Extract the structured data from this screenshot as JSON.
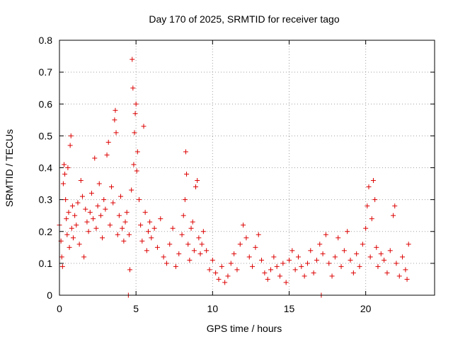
{
  "chart_data": {
    "type": "scatter",
    "title": "Day 170 of 2025, SRMTID for receiver tago",
    "xlabel": "GPS time / hours",
    "ylabel": "SRMTID / TECUs",
    "xlim": [
      0,
      24.5
    ],
    "ylim": [
      0,
      0.8
    ],
    "grid": true,
    "marker": "+",
    "x_ticks": [
      0,
      5,
      10,
      15,
      20
    ],
    "x_tick_labels": [
      "0",
      "5",
      "10",
      "15",
      "20"
    ],
    "y_ticks": [
      0,
      0.1,
      0.2,
      0.3,
      0.4,
      0.5,
      0.6,
      0.7,
      0.8
    ],
    "y_tick_labels": [
      "0",
      "0.1",
      "0.2",
      "0.3",
      "0.4",
      "0.5",
      "0.6",
      "0.7",
      "0.8"
    ],
    "color": "#dd0000",
    "series": [
      {
        "name": "SRMTID",
        "points": [
          [
            0.0,
            0.22
          ],
          [
            0.1,
            0.17
          ],
          [
            0.15,
            0.12
          ],
          [
            0.2,
            0.09
          ],
          [
            0.25,
            0.35
          ],
          [
            0.3,
            0.41
          ],
          [
            0.35,
            0.38
          ],
          [
            0.4,
            0.3
          ],
          [
            0.45,
            0.24
          ],
          [
            0.5,
            0.19
          ],
          [
            0.55,
            0.4
          ],
          [
            0.6,
            0.26
          ],
          [
            0.65,
            0.15
          ],
          [
            0.7,
            0.47
          ],
          [
            0.75,
            0.5
          ],
          [
            0.8,
            0.21
          ],
          [
            0.85,
            0.28
          ],
          [
            0.9,
            0.18
          ],
          [
            1.0,
            0.25
          ],
          [
            1.1,
            0.22
          ],
          [
            1.2,
            0.29
          ],
          [
            1.3,
            0.16
          ],
          [
            1.4,
            0.36
          ],
          [
            1.5,
            0.31
          ],
          [
            1.6,
            0.12
          ],
          [
            1.7,
            0.27
          ],
          [
            1.8,
            0.23
          ],
          [
            1.9,
            0.2
          ],
          [
            2.0,
            0.26
          ],
          [
            2.1,
            0.32
          ],
          [
            2.2,
            0.24
          ],
          [
            2.3,
            0.43
          ],
          [
            2.4,
            0.21
          ],
          [
            2.5,
            0.28
          ],
          [
            2.6,
            0.35
          ],
          [
            2.7,
            0.25
          ],
          [
            2.8,
            0.18
          ],
          [
            2.9,
            0.3
          ],
          [
            3.0,
            0.27
          ],
          [
            3.1,
            0.44
          ],
          [
            3.2,
            0.48
          ],
          [
            3.3,
            0.22
          ],
          [
            3.4,
            0.34
          ],
          [
            3.5,
            0.29
          ],
          [
            3.6,
            0.55
          ],
          [
            3.65,
            0.58
          ],
          [
            3.7,
            0.51
          ],
          [
            3.8,
            0.19
          ],
          [
            3.9,
            0.25
          ],
          [
            4.0,
            0.31
          ],
          [
            4.1,
            0.21
          ],
          [
            4.2,
            0.17
          ],
          [
            4.3,
            0.23
          ],
          [
            4.4,
            0.26
          ],
          [
            4.5,
            0.0
          ],
          [
            4.55,
            0.19
          ],
          [
            4.6,
            0.08
          ],
          [
            4.7,
            0.33
          ],
          [
            4.75,
            0.74
          ],
          [
            4.8,
            0.65
          ],
          [
            4.85,
            0.41
          ],
          [
            4.9,
            0.51
          ],
          [
            4.95,
            0.57
          ],
          [
            5.0,
            0.6
          ],
          [
            5.05,
            0.39
          ],
          [
            5.1,
            0.45
          ],
          [
            5.2,
            0.3
          ],
          [
            5.3,
            0.22
          ],
          [
            5.4,
            0.17
          ],
          [
            5.5,
            0.53
          ],
          [
            5.6,
            0.26
          ],
          [
            5.7,
            0.14
          ],
          [
            5.8,
            0.2
          ],
          [
            5.9,
            0.23
          ],
          [
            6.0,
            0.18
          ],
          [
            6.2,
            0.21
          ],
          [
            6.4,
            0.15
          ],
          [
            6.6,
            0.24
          ],
          [
            6.8,
            0.12
          ],
          [
            7.0,
            0.1
          ],
          [
            7.2,
            0.16
          ],
          [
            7.4,
            0.21
          ],
          [
            7.6,
            0.09
          ],
          [
            7.8,
            0.13
          ],
          [
            8.0,
            0.19
          ],
          [
            8.1,
            0.25
          ],
          [
            8.2,
            0.3
          ],
          [
            8.25,
            0.45
          ],
          [
            8.3,
            0.38
          ],
          [
            8.4,
            0.16
          ],
          [
            8.5,
            0.11
          ],
          [
            8.6,
            0.21
          ],
          [
            8.7,
            0.23
          ],
          [
            8.8,
            0.14
          ],
          [
            8.9,
            0.34
          ],
          [
            9.0,
            0.36
          ],
          [
            9.1,
            0.18
          ],
          [
            9.2,
            0.13
          ],
          [
            9.3,
            0.16
          ],
          [
            9.4,
            0.2
          ],
          [
            9.6,
            0.14
          ],
          [
            9.8,
            0.08
          ],
          [
            10.0,
            0.11
          ],
          [
            10.2,
            0.07
          ],
          [
            10.4,
            0.05
          ],
          [
            10.6,
            0.09
          ],
          [
            10.8,
            0.04
          ],
          [
            11.0,
            0.06
          ],
          [
            11.2,
            0.1
          ],
          [
            11.4,
            0.13
          ],
          [
            11.6,
            0.08
          ],
          [
            11.8,
            0.16
          ],
          [
            12.0,
            0.22
          ],
          [
            12.2,
            0.18
          ],
          [
            12.4,
            0.12
          ],
          [
            12.6,
            0.09
          ],
          [
            12.8,
            0.15
          ],
          [
            13.0,
            0.19
          ],
          [
            13.2,
            0.11
          ],
          [
            13.4,
            0.07
          ],
          [
            13.6,
            0.05
          ],
          [
            13.8,
            0.08
          ],
          [
            14.0,
            0.12
          ],
          [
            14.2,
            0.09
          ],
          [
            14.4,
            0.06
          ],
          [
            14.6,
            0.1
          ],
          [
            14.8,
            0.04
          ],
          [
            15.0,
            0.11
          ],
          [
            15.2,
            0.14
          ],
          [
            15.4,
            0.08
          ],
          [
            15.6,
            0.12
          ],
          [
            15.8,
            0.09
          ],
          [
            16.0,
            0.06
          ],
          [
            16.2,
            0.1
          ],
          [
            16.4,
            0.14
          ],
          [
            16.6,
            0.07
          ],
          [
            16.8,
            0.11
          ],
          [
            17.0,
            0.16
          ],
          [
            17.1,
            0.0
          ],
          [
            17.2,
            0.13
          ],
          [
            17.4,
            0.19
          ],
          [
            17.6,
            0.1
          ],
          [
            17.8,
            0.06
          ],
          [
            18.0,
            0.12
          ],
          [
            18.2,
            0.18
          ],
          [
            18.4,
            0.09
          ],
          [
            18.6,
            0.14
          ],
          [
            18.8,
            0.2
          ],
          [
            19.0,
            0.11
          ],
          [
            19.2,
            0.07
          ],
          [
            19.4,
            0.13
          ],
          [
            19.6,
            0.09
          ],
          [
            19.8,
            0.16
          ],
          [
            20.0,
            0.21
          ],
          [
            20.1,
            0.28
          ],
          [
            20.2,
            0.34
          ],
          [
            20.3,
            0.12
          ],
          [
            20.4,
            0.24
          ],
          [
            20.5,
            0.36
          ],
          [
            20.6,
            0.3
          ],
          [
            20.7,
            0.15
          ],
          [
            20.8,
            0.09
          ],
          [
            21.0,
            0.13
          ],
          [
            21.2,
            0.11
          ],
          [
            21.4,
            0.07
          ],
          [
            21.6,
            0.14
          ],
          [
            21.8,
            0.25
          ],
          [
            21.9,
            0.28
          ],
          [
            22.0,
            0.1
          ],
          [
            22.2,
            0.06
          ],
          [
            22.4,
            0.12
          ],
          [
            22.6,
            0.08
          ],
          [
            22.7,
            0.05
          ],
          [
            22.8,
            0.16
          ]
        ]
      }
    ]
  }
}
